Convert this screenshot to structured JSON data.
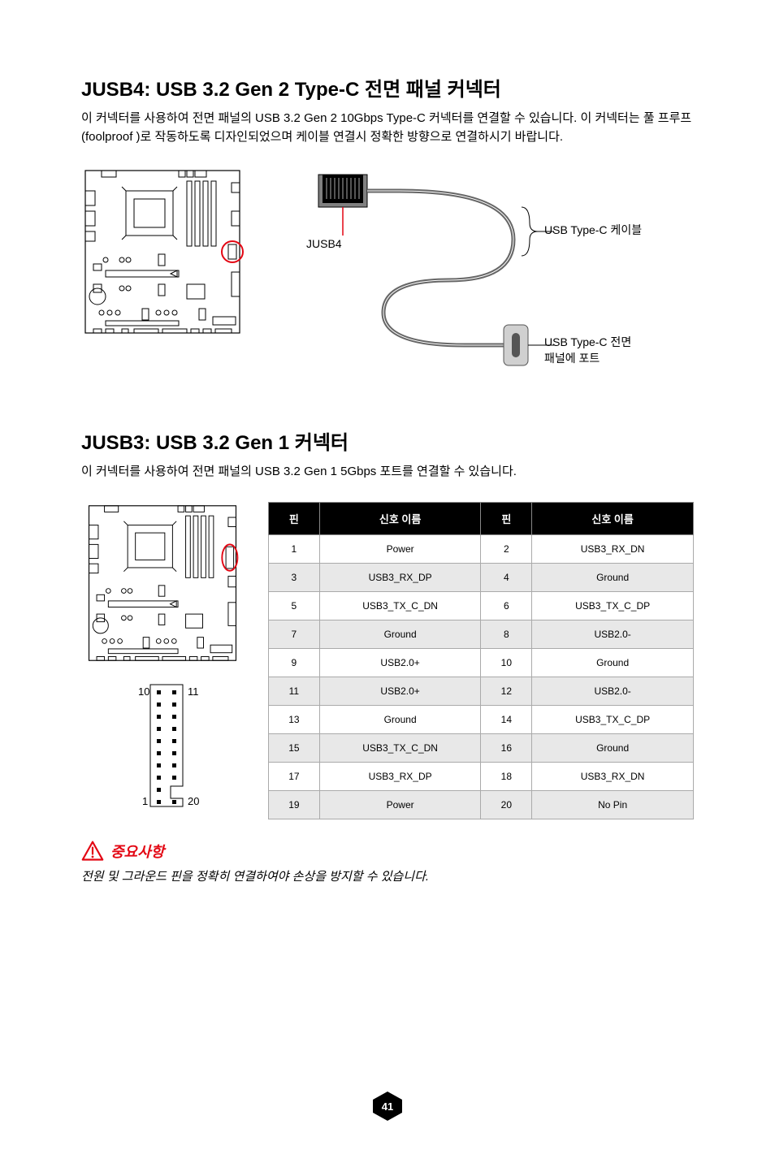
{
  "section1": {
    "title": "JUSB4: USB 3.2 Gen 2 Type-C 전면 패널 커넥터",
    "description": "이 커넥터를 사용하여 전면 패널의 USB 3.2 Gen 2 10Gbps Type-C 커넥터를 연결할 수 있습니다. 이 커넥터는 풀 프루프(foolproof )로 작동하도록 디자인되었으며 케이블 연결시 정확한 방향으로 연결하시기 바랍니다.",
    "connector_label": "JUSB4",
    "cable_label": "USB Type-C 케이블",
    "port_label_line1": "USB Type-C 전면",
    "port_label_line2": "패널에 포트"
  },
  "section2": {
    "title": "JUSB3: USB 3.2 Gen 1 커넥터",
    "description": "이 커넥터를 사용하여 전면 패널의 USB 3.2 Gen 1 5Gbps 포트를 연결할 수 있습니다.",
    "table": {
      "headers": {
        "pin1": "핀",
        "name1": "신호 이름",
        "pin2": "핀",
        "name2": "신호 이름"
      },
      "rows": [
        {
          "p1": "1",
          "n1": "Power",
          "p2": "2",
          "n2": "USB3_RX_DN"
        },
        {
          "p1": "3",
          "n1": "USB3_RX_DP",
          "p2": "4",
          "n2": "Ground"
        },
        {
          "p1": "5",
          "n1": "USB3_TX_C_DN",
          "p2": "6",
          "n2": "USB3_TX_C_DP"
        },
        {
          "p1": "7",
          "n1": "Ground",
          "p2": "8",
          "n2": "USB2.0-"
        },
        {
          "p1": "9",
          "n1": "USB2.0+",
          "p2": "10",
          "n2": "Ground"
        },
        {
          "p1": "11",
          "n1": "USB2.0+",
          "p2": "12",
          "n2": "USB2.0-"
        },
        {
          "p1": "13",
          "n1": "Ground",
          "p2": "14",
          "n2": "USB3_TX_C_DP"
        },
        {
          "p1": "15",
          "n1": "USB3_TX_C_DN",
          "p2": "16",
          "n2": "Ground"
        },
        {
          "p1": "17",
          "n1": "USB3_RX_DP",
          "p2": "18",
          "n2": "USB3_RX_DN"
        },
        {
          "p1": "19",
          "n1": "Power",
          "p2": "20",
          "n2": "No Pin"
        }
      ]
    },
    "pin_labels": {
      "p1": "1",
      "p10": "10",
      "p11": "11",
      "p20": "20"
    }
  },
  "notice": {
    "title": "중요사항",
    "text": "전원 및 그라운드 핀을 정확히 연결하여야 손상을 방지할 수 있습니다."
  },
  "page_number": "41",
  "colors": {
    "accent_red": "#e30613",
    "table_header_bg": "#000000",
    "table_alt_bg": "#e8e8e8",
    "badge_bg": "#000000"
  }
}
